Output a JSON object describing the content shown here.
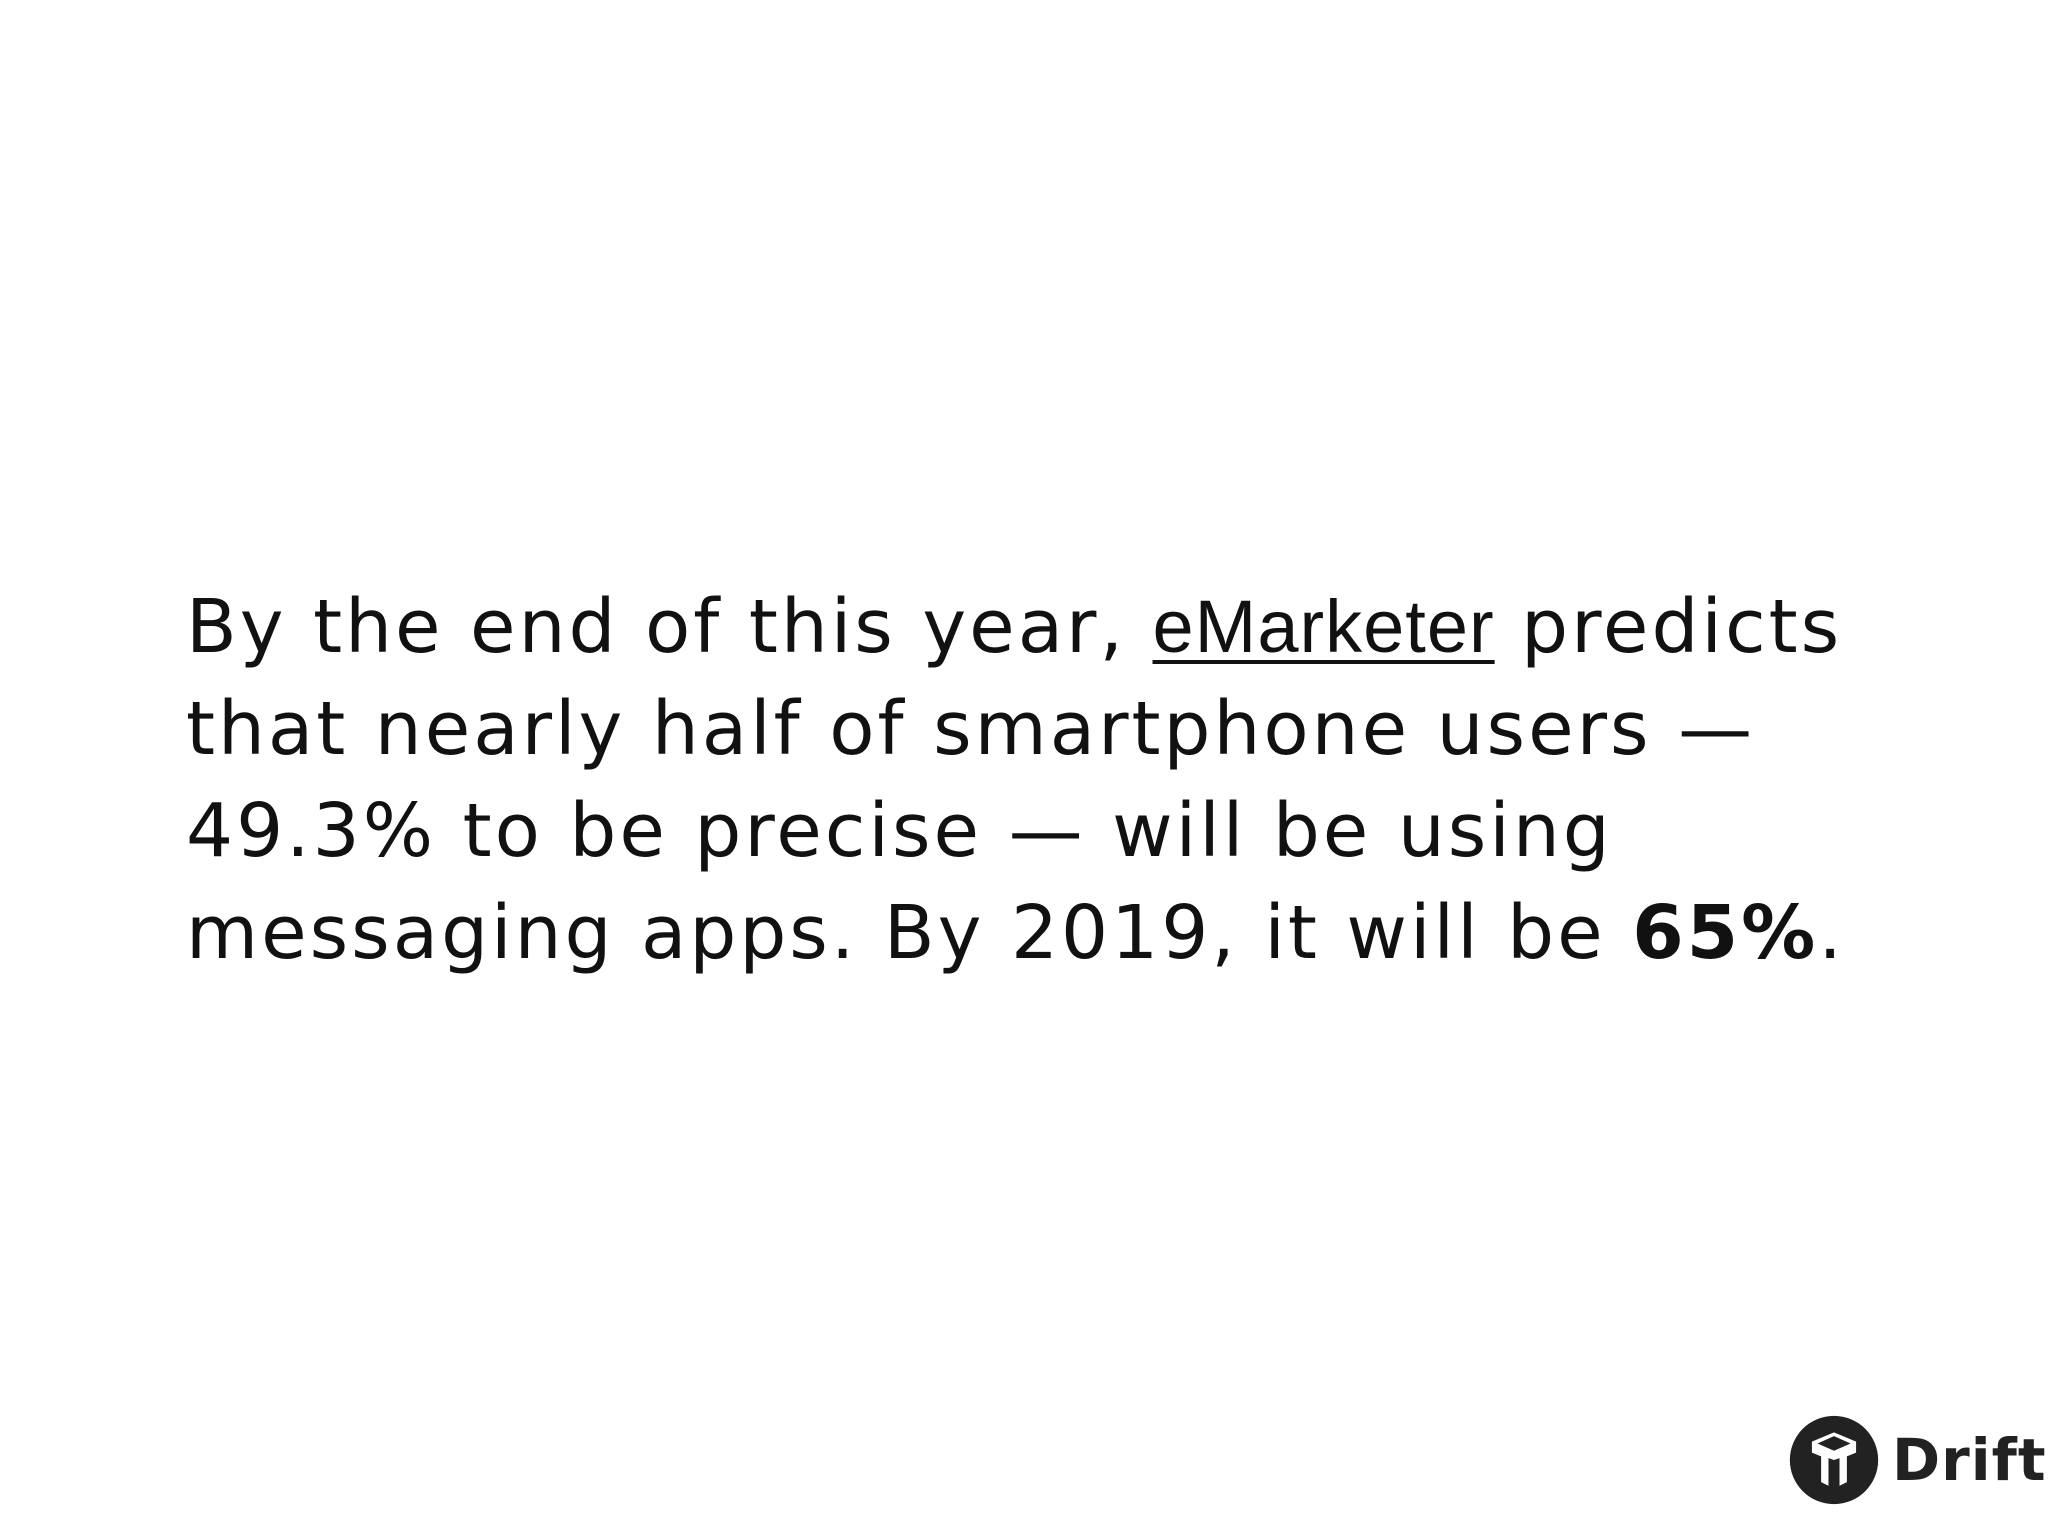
{
  "body": {
    "line1_before": "By the end of this year, ",
    "line1_link": "eMarketer",
    "line1_after": " predicts",
    "line2": "that nearly half of smartphone users —",
    "line3": "49.3% to be precise — will be using",
    "line4_before": "messaging apps. By 2019, it will be ",
    "line4_bold": "65%",
    "line4_after": "."
  },
  "brand": {
    "name": "Drift",
    "icon": "drift-logo-icon",
    "color": "#222222"
  }
}
